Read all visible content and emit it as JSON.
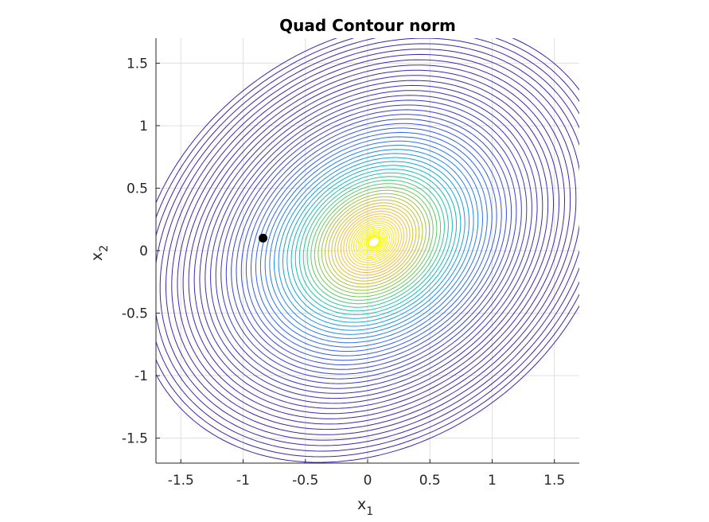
{
  "chart_data": {
    "type": "contour",
    "title": "Quad Contour norm",
    "xlabel": "x",
    "xlabel_subscript": "1",
    "ylabel": "x",
    "ylabel_subscript": "2",
    "xlim": [
      -1.7,
      1.7
    ],
    "ylim": [
      -1.7,
      1.7
    ],
    "xticks": [
      -1.5,
      -1,
      -0.5,
      0,
      0.5,
      1,
      1.5
    ],
    "xtick_labels": [
      "-1.5",
      "-1",
      "-0.5",
      "0",
      "0.5",
      "1",
      "1.5"
    ],
    "yticks": [
      -1.5,
      -1,
      -0.5,
      0,
      0.5,
      1,
      1.5
    ],
    "ytick_labels": [
      "-1.5",
      "-1",
      "-0.5",
      "0",
      "0.5",
      "1",
      "1.5"
    ],
    "grid": true,
    "colormap": "parula",
    "peak": {
      "x": 0.05,
      "y": 0.07
    },
    "contour_level_count": 60,
    "marked_point": {
      "x": -0.84,
      "y": 0.1,
      "color": "#000000"
    },
    "line_low_color": "#3e26a8",
    "line_high_color": "#f9fb0e"
  }
}
